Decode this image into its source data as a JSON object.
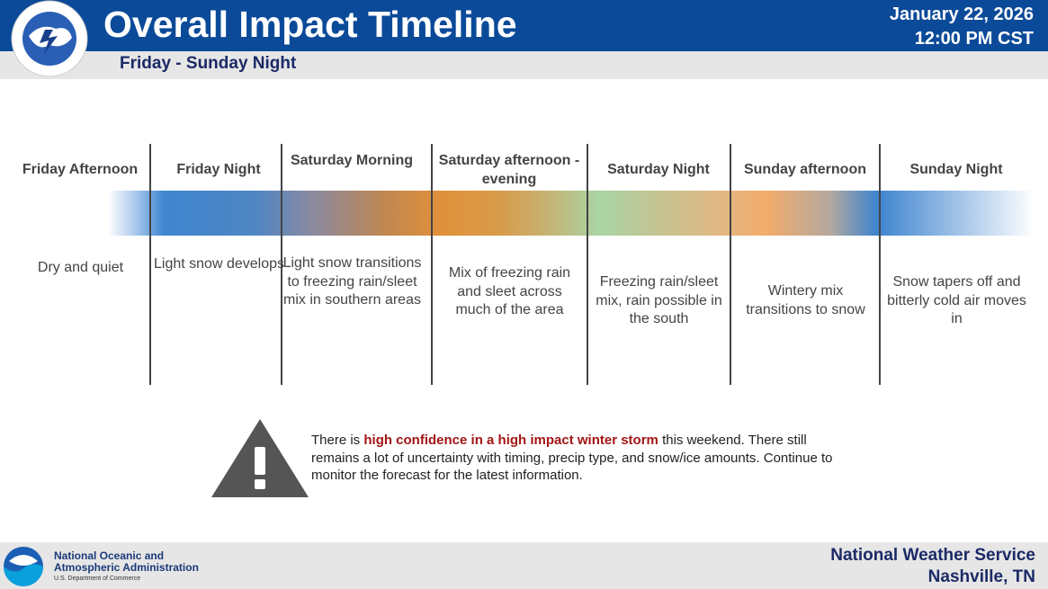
{
  "header": {
    "title": "Overall Impact Timeline",
    "subtitle": "Friday - Sunday Night",
    "date": "January 22, 2026",
    "time": "12:00 PM CST"
  },
  "timeline": {
    "periods": [
      {
        "label": "Friday Afternoon",
        "description": "Dry and quiet"
      },
      {
        "label": "Friday Night",
        "description": "Light snow develops"
      },
      {
        "label": "Saturday Morning",
        "description": "Light snow transitions to freezing rain/sleet mix in southern areas"
      },
      {
        "label": "Saturday afternoon - evening",
        "description": "Mix of freezing rain and sleet across much of the area"
      },
      {
        "label": "Saturday Night",
        "description": "Freezing rain/sleet mix, rain possible in the south"
      },
      {
        "label": "Sunday afternoon",
        "description": "Wintery mix transitions to snow"
      },
      {
        "label": "Sunday Night",
        "description": "Snow tapers off and bitterly cold air moves in"
      }
    ]
  },
  "notice": {
    "before": "There is ",
    "highlight": "high confidence in a high impact winter storm",
    "after": " this weekend. There still remains a lot of uncertainty with timing, precip type, and snow/ice amounts. Continue to monitor the forecast for the latest information."
  },
  "footer": {
    "agency_line1": "National Oceanic and",
    "agency_line2": "Atmospheric Administration",
    "department": "U.S. Department of Commerce",
    "office_name": "National Weather Service",
    "office_location": "Nashville, TN"
  }
}
